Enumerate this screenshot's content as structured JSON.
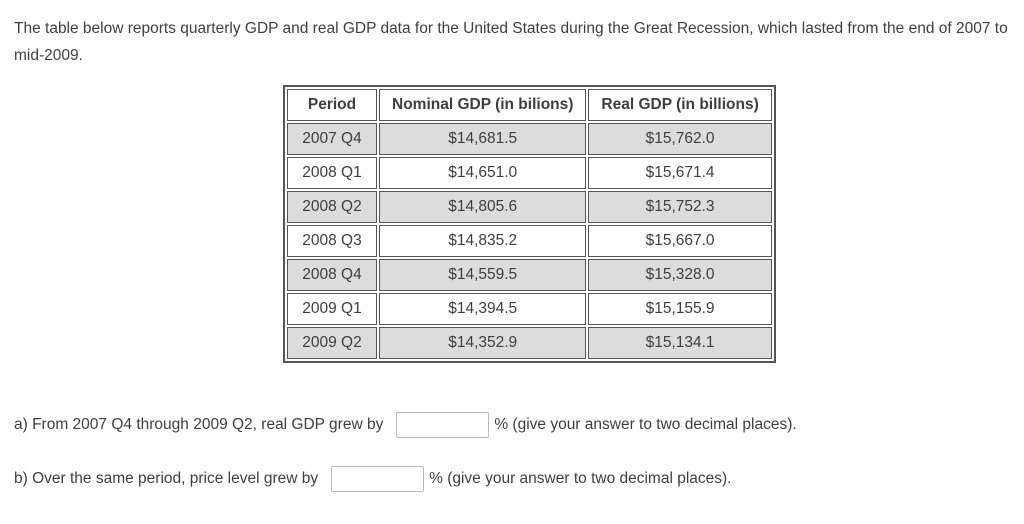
{
  "intro": "The table below reports quarterly GDP and real GDP data for the United States during the Great Recession, which lasted from the end of 2007 to mid-2009.",
  "table": {
    "headers": [
      "Period",
      "Nominal GDP (in bilions)",
      "Real GDP (in billions)"
    ],
    "rows": [
      [
        "2007 Q4",
        "$14,681.5",
        "$15,762.0"
      ],
      [
        "2008 Q1",
        "$14,651.0",
        "$15,671.4"
      ],
      [
        "2008 Q2",
        "$14,805.6",
        "$15,752.3"
      ],
      [
        "2008 Q3",
        "$14,835.2",
        "$15,667.0"
      ],
      [
        "2008 Q4",
        "$14,559.5",
        "$15,328.0"
      ],
      [
        "2009 Q1",
        "$14,394.5",
        "$15,155.9"
      ],
      [
        "2009 Q2",
        "$14,352.9",
        "$15,134.1"
      ]
    ]
  },
  "questions": {
    "a": {
      "before": "a) From 2007 Q4 through 2009 Q2, real GDP grew by",
      "input_value": "",
      "after": "% (give your answer to two decimal places)."
    },
    "b": {
      "before": "b) Over the same period, price level grew by",
      "input_value": "",
      "after": "% (give your answer to two decimal places)."
    }
  },
  "colors": {
    "text": "#3e3e3e",
    "table_border": "#545454",
    "shaded_row": "#dcdcdc",
    "input_border": "#b9b9b9",
    "background": "#ffffff"
  }
}
